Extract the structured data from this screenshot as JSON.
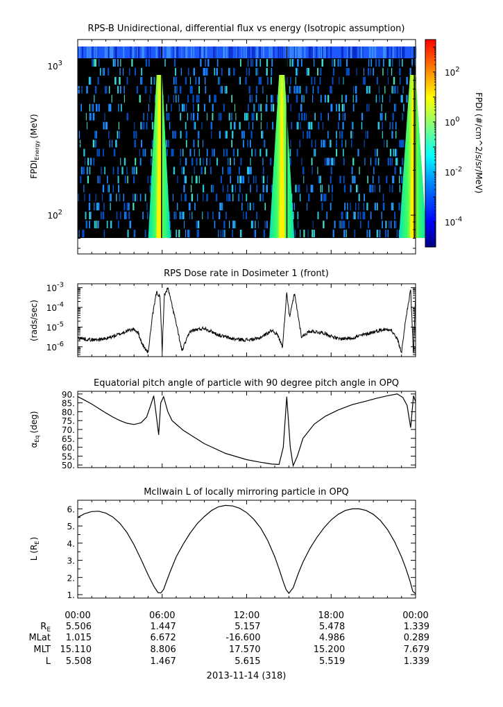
{
  "chart_data": [
    {
      "type": "heatmap",
      "title": "RPS-B  Unidirectional, differential flux vs energy (Isotropic assumption)",
      "ylabel_main": "FPDI",
      "ylabel_sub": "Energy",
      "ylabel_unit": "(MeV)",
      "yscale": "log",
      "ylim": [
        55,
        1500
      ],
      "yticks": [
        {
          "value": 100,
          "base": "10",
          "exp": "2"
        },
        {
          "value": 1000,
          "base": "10",
          "exp": "3"
        }
      ],
      "colorbar": {
        "label": "FPDI (#/cm^2/s/sr/MeV)",
        "scale": "log",
        "range_exp": [
          -5,
          3.3
        ],
        "colors": [
          "#00007f",
          "#0000ff",
          "#007fff",
          "#00ffff",
          "#7fff7f",
          "#ffff00",
          "#ff7f00",
          "#ff0000"
        ],
        "ticks": [
          {
            "exp_value": -4,
            "base": "10",
            "exp": "-4"
          },
          {
            "exp_value": -2,
            "base": "10",
            "exp": "-2"
          },
          {
            "exp_value": 0,
            "base": "10",
            "exp": "0"
          },
          {
            "exp_value": 2,
            "base": "10",
            "exp": "2"
          }
        ]
      },
      "belt_passes_hours": [
        5.8,
        14.5,
        23.8
      ],
      "perigee_hours": [
        5.95,
        14.85,
        23.9
      ]
    },
    {
      "type": "line",
      "title": "RPS  Dose rate in Dosimeter 1 (front)",
      "ylabel": "(rads/sec)",
      "yscale": "log",
      "ylim_exp": [
        -6.5,
        -2.8
      ],
      "yticks": [
        {
          "exp_value": -6,
          "base": "10",
          "exp": "-6"
        },
        {
          "exp_value": -5,
          "base": "10",
          "exp": "-5"
        },
        {
          "exp_value": -4,
          "base": "10",
          "exp": "-4"
        },
        {
          "exp_value": -3,
          "base": "10",
          "exp": "-3"
        }
      ],
      "x_hours": [
        0,
        1,
        2,
        3,
        3.5,
        4,
        4.3,
        4.6,
        5.0,
        5.3,
        5.6,
        5.85,
        6.0,
        6.15,
        6.4,
        6.9,
        7.4,
        8,
        9,
        10,
        11,
        12,
        12.8,
        13.4,
        13.8,
        14.2,
        14.55,
        14.85,
        15.05,
        15.4,
        15.9,
        16.5,
        17.5,
        18.5,
        19.5,
        20.5,
        21.5,
        22.2,
        22.7,
        23.0,
        23.3,
        23.65,
        23.85,
        24.0
      ],
      "log10_values": [
        -5.55,
        -5.65,
        -5.6,
        -5.35,
        -5.2,
        -5.1,
        -5.3,
        -5.9,
        -6.3,
        -4.5,
        -3.2,
        -3.5,
        -6.2,
        -3.4,
        -3.0,
        -4.5,
        -6.2,
        -5.2,
        -5.05,
        -5.4,
        -5.6,
        -5.65,
        -5.6,
        -5.35,
        -5.15,
        -5.4,
        -6.0,
        -3.2,
        -4.5,
        -3.3,
        -5.5,
        -5.2,
        -5.3,
        -5.6,
        -5.55,
        -5.35,
        -5.15,
        -5.1,
        -5.6,
        -6.3,
        -4.6,
        -3.1,
        -6.4,
        -3.3
      ]
    },
    {
      "type": "line",
      "title": "Equatorial pitch angle of particle with 90 degree pitch angle in OPQ",
      "ylabel_main": "α",
      "ylabel_sub": "Eq",
      "ylabel_unit": "(deg)",
      "ylim": [
        48.5,
        91.5
      ],
      "yticks": [
        "50.",
        "55.",
        "60.",
        "65.",
        "70.",
        "75.",
        "80.",
        "85.",
        "90."
      ],
      "ytick_values": [
        50,
        55,
        60,
        65,
        70,
        75,
        80,
        85,
        90
      ],
      "x_hours": [
        0,
        0.5,
        1,
        1.5,
        2,
        2.5,
        3,
        3.5,
        4,
        4.5,
        4.9,
        5.2,
        5.4,
        5.55,
        5.75,
        5.9,
        6.1,
        6.4,
        6.7,
        7.5,
        9,
        10.5,
        12,
        13,
        13.8,
        14.3,
        14.6,
        14.85,
        15.1,
        15.3,
        15.6,
        16,
        16.8,
        17.6,
        18.5,
        19.5,
        20.5,
        21.2,
        22,
        22.7,
        23.1,
        23.4,
        23.65,
        23.85,
        24.0
      ],
      "values": [
        88.5,
        86.5,
        84.3,
        81.8,
        79.3,
        77.0,
        75.0,
        73.5,
        72.8,
        73.8,
        77.0,
        84.0,
        89.0,
        80.0,
        67.0,
        85.0,
        88.5,
        80.0,
        75.0,
        69.5,
        62.0,
        56.5,
        53.0,
        51.5,
        50.5,
        50.3,
        60.0,
        88.5,
        60.0,
        49.5,
        55.0,
        65.0,
        73.0,
        77.5,
        81.0,
        84.0,
        86.0,
        87.5,
        89.0,
        90.0,
        88.0,
        83.5,
        71.0,
        89.0,
        85.5
      ]
    },
    {
      "type": "line",
      "title": "McIlwain L of locally mirroring particle in OPQ",
      "ylabel_main": "L (R",
      "ylabel_sub": "E",
      "ylabel_unit": ")",
      "ylim": [
        0.8,
        6.5
      ],
      "yticks": [
        "1.",
        "2.",
        "3.",
        "4.",
        "5.",
        "6."
      ],
      "ytick_values": [
        1,
        2,
        3,
        4,
        5,
        6
      ],
      "x_hours": [
        0,
        0.5,
        1,
        1.5,
        2,
        2.5,
        3,
        3.5,
        4,
        4.5,
        5,
        5.4,
        5.7,
        5.9,
        6.1,
        6.3,
        6.6,
        7,
        7.5,
        8,
        8.5,
        9,
        9.5,
        10,
        10.5,
        11,
        11.5,
        12,
        12.5,
        13,
        13.5,
        14,
        14.3,
        14.6,
        14.8,
        15.0,
        15.3,
        15.7,
        16,
        16.5,
        17,
        17.5,
        18,
        18.5,
        19,
        19.5,
        20,
        20.5,
        21,
        21.5,
        22,
        22.5,
        23,
        23.3,
        23.6,
        23.8,
        24.0
      ],
      "values": [
        5.5,
        5.72,
        5.84,
        5.86,
        5.75,
        5.52,
        5.15,
        4.62,
        3.9,
        3.05,
        2.15,
        1.5,
        1.12,
        1.1,
        1.3,
        1.75,
        2.4,
        3.2,
        3.95,
        4.6,
        5.15,
        5.55,
        5.9,
        6.12,
        6.2,
        6.17,
        6.03,
        5.78,
        5.4,
        4.88,
        4.15,
        3.2,
        2.5,
        1.75,
        1.3,
        1.08,
        1.4,
        2.3,
        2.9,
        3.7,
        4.35,
        4.9,
        5.35,
        5.68,
        5.9,
        6.0,
        6.0,
        5.9,
        5.68,
        5.32,
        4.8,
        4.1,
        3.2,
        2.55,
        1.8,
        1.2,
        1.05
      ]
    }
  ],
  "x_axis": {
    "ticks": [
      "00:00",
      "06:00",
      "12:00",
      "18:00",
      "00:00"
    ],
    "tick_hours": [
      0,
      6,
      12,
      18,
      24
    ],
    "xlim_hours": [
      0,
      24
    ]
  },
  "ephemeris": {
    "rows": [
      {
        "label": "R",
        "label_sub": "E",
        "values": [
          "5.506",
          "1.447",
          "5.157",
          "5.478",
          "1.339"
        ]
      },
      {
        "label": "MLat",
        "label_sub": "",
        "values": [
          "1.015",
          "6.672",
          "-16.600",
          "4.986",
          "0.289"
        ]
      },
      {
        "label": "MLT",
        "label_sub": "",
        "values": [
          "15.110",
          "8.806",
          "17.570",
          "15.200",
          "7.679"
        ]
      },
      {
        "label": "L",
        "label_sub": "",
        "values": [
          "5.508",
          "1.467",
          "5.615",
          "5.519",
          "1.339"
        ]
      }
    ],
    "date": "2013-11-14 (318)"
  }
}
